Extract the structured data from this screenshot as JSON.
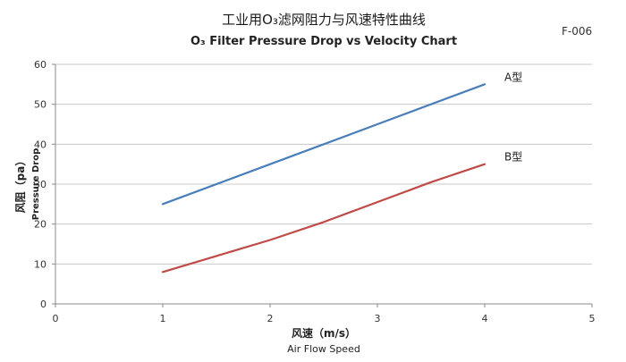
{
  "chart_data": {
    "type": "line",
    "title": "工业用O₃滤网阻力与风速特性曲线",
    "subtitle": "O₃ Filter Pressure Drop vs Velocity Chart",
    "code": "F-006",
    "xlabel_cn": "风速（m/s）",
    "xlabel_en": "Air Flow Speed",
    "ylabel_cn": "风阻（pa）",
    "ylabel_en": "Pressure Drop",
    "xlim": [
      0,
      5
    ],
    "ylim": [
      0,
      60
    ],
    "x_ticks": [
      "0",
      "1",
      "2",
      "3",
      "4",
      "5"
    ],
    "y_ticks": [
      "0",
      "10",
      "20",
      "30",
      "40",
      "50",
      "60"
    ],
    "grid": "horizontal",
    "series": [
      {
        "name": "A型",
        "color": "#4a7ebb",
        "points": [
          [
            1,
            25
          ],
          [
            2,
            35
          ],
          [
            3,
            45
          ],
          [
            4,
            55
          ]
        ]
      },
      {
        "name": "B型",
        "color": "#be4b48",
        "points": [
          [
            1,
            8
          ],
          [
            1.5,
            12
          ],
          [
            2,
            16
          ],
          [
            2.5,
            20.5
          ],
          [
            3,
            25.5
          ],
          [
            3.5,
            30.5
          ],
          [
            4,
            35
          ]
        ]
      }
    ]
  }
}
